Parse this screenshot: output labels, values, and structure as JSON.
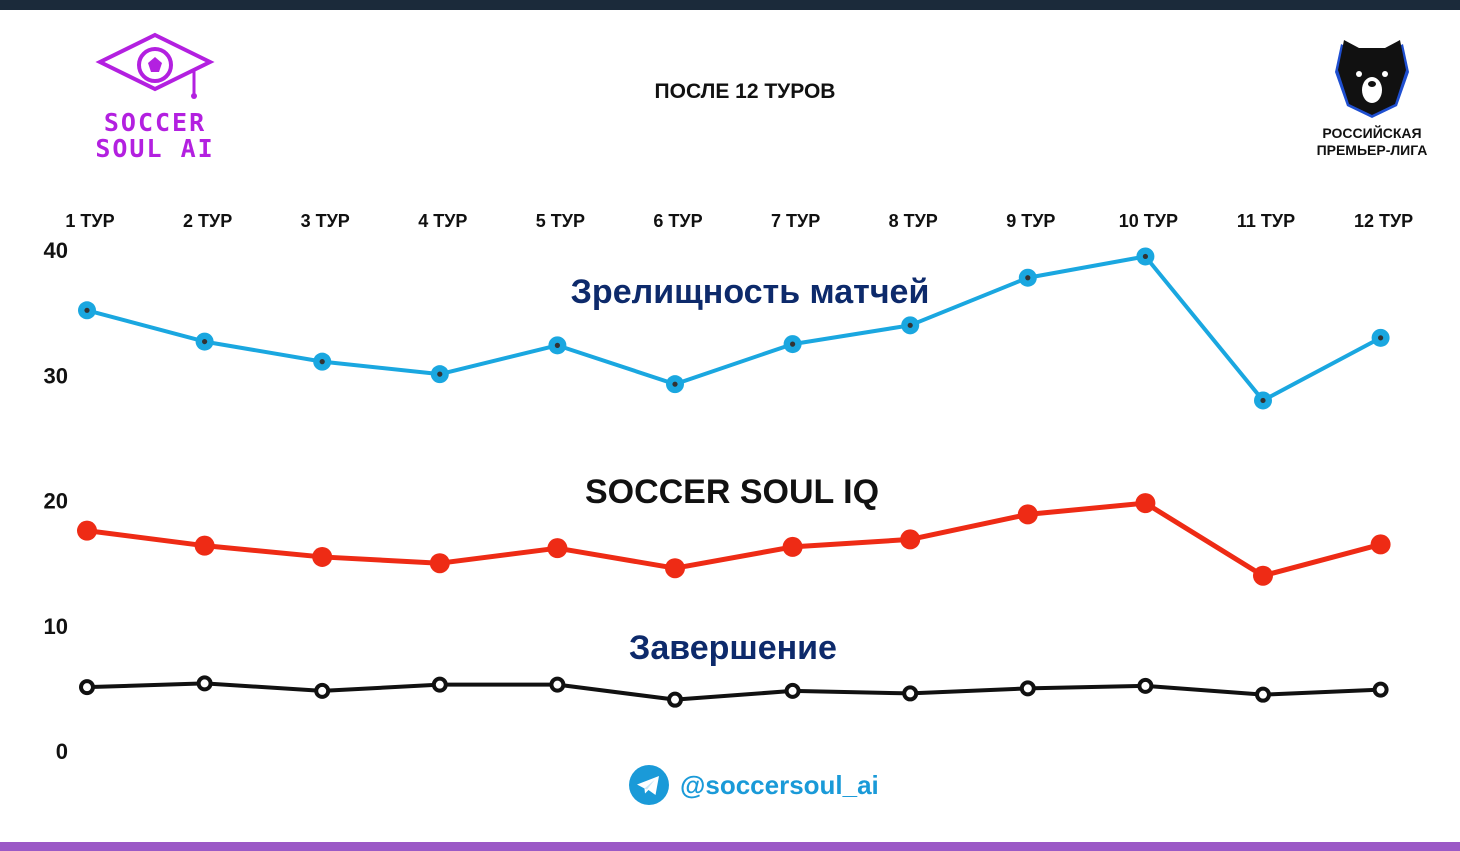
{
  "header": {
    "title": "ПОСЛЕ 12 ТУРОВ",
    "left_logo": {
      "line1": "SOCCER",
      "line2": "SOUL AI",
      "color": "#b320e0",
      "icon": "graduation-cap-football-icon"
    },
    "right_logo": {
      "line1": "РОССИЙСКАЯ",
      "line2": "ПРЕМЬЕР-ЛИГА",
      "icon": "bear-head-icon"
    }
  },
  "footer": {
    "handle": "@soccersoul_ai",
    "icon": "telegram-icon",
    "color": "#1a9ad8"
  },
  "colors": {
    "top_bar": "#1b2a3a",
    "bottom_bar": "#9b59c6"
  },
  "chart_data": {
    "type": "line",
    "title": "ПОСЛЕ 12 ТУРОВ",
    "categories": [
      "1 ТУР",
      "2 ТУР",
      "3 ТУР",
      "4 ТУР",
      "5 ТУР",
      "6 ТУР",
      "7 ТУР",
      "8 ТУР",
      "9 ТУР",
      "10 ТУР",
      "11 ТУР",
      "12 ТУР"
    ],
    "x_axis_position": "top",
    "ylim": [
      0,
      40
    ],
    "y_ticks": [
      0,
      10,
      20,
      30,
      40
    ],
    "grid": false,
    "legend": "inline-labels",
    "series": [
      {
        "name": "Зрелищность матчей",
        "color": "#1aa7e0",
        "label_color": "#0d2a6b",
        "values": [
          35.2,
          32.7,
          31.1,
          30.1,
          32.4,
          29.3,
          32.5,
          34.0,
          37.8,
          39.5,
          28.0,
          33.0
        ]
      },
      {
        "name": "SOCCER SOUL IQ",
        "color": "#ee2b15",
        "label_color": "#111111",
        "values": [
          17.6,
          16.4,
          15.5,
          15.0,
          16.2,
          14.6,
          16.3,
          16.9,
          18.9,
          19.8,
          14.0,
          16.5
        ]
      },
      {
        "name": "Завершение",
        "color": "#111111",
        "label_color": "#0d2a6b",
        "values": [
          5.1,
          5.4,
          4.8,
          5.3,
          5.3,
          4.1,
          4.8,
          4.6,
          5.0,
          5.2,
          4.5,
          4.9
        ]
      }
    ]
  }
}
